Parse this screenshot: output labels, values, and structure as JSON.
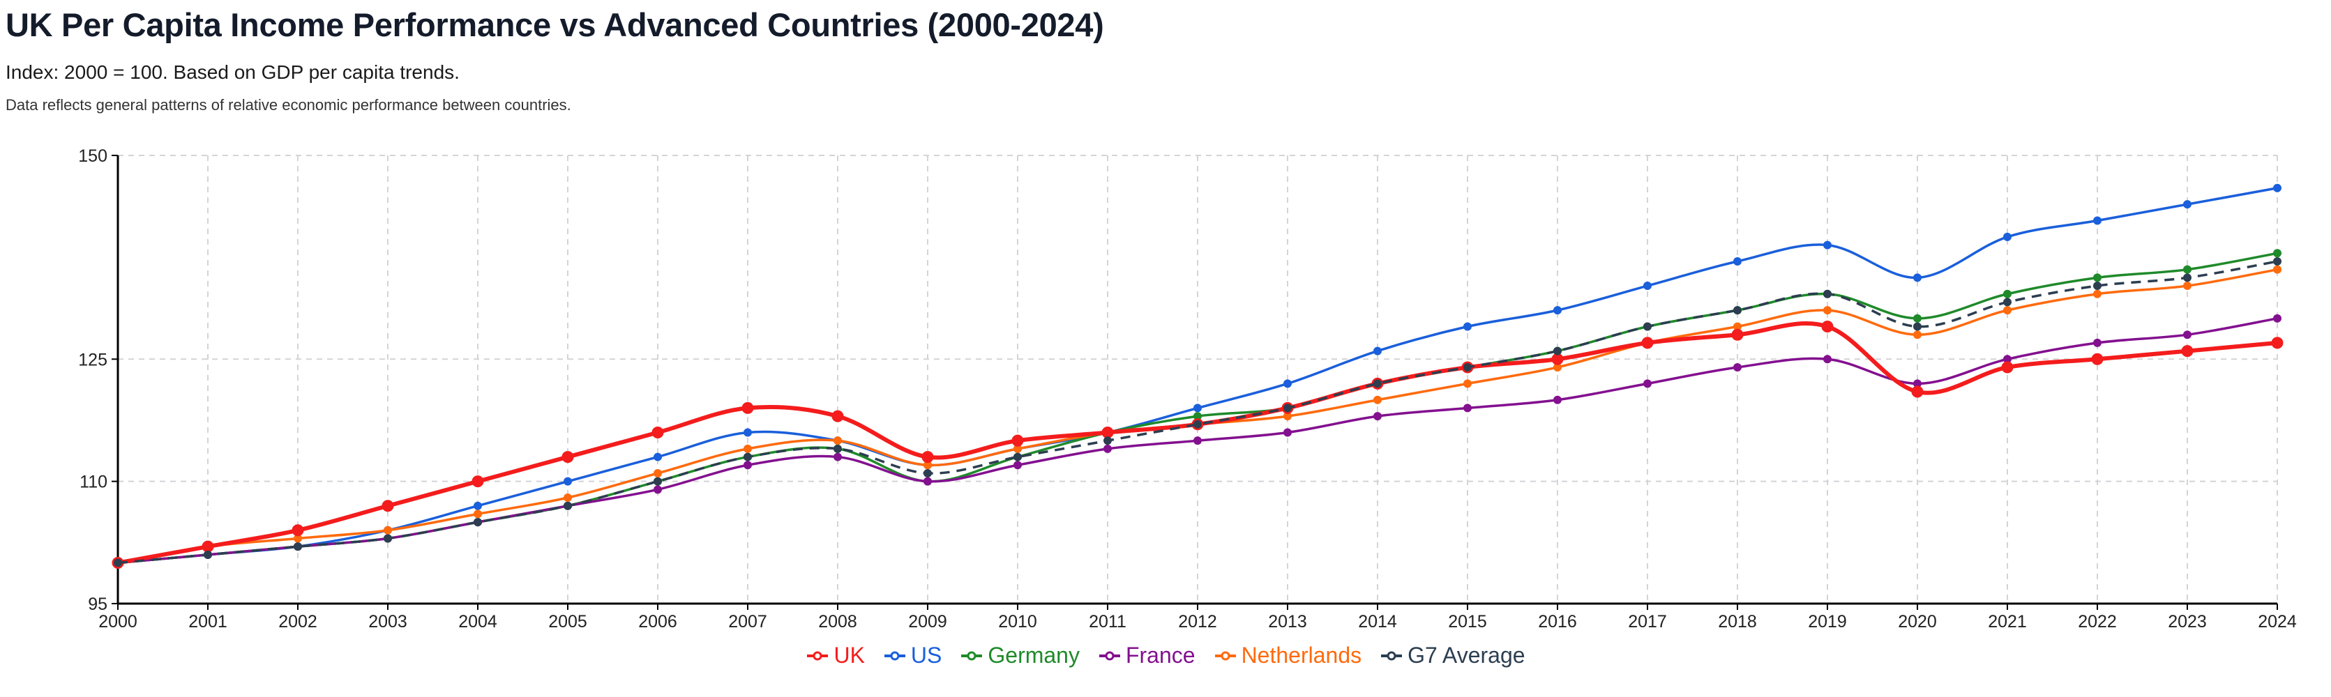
{
  "header": {
    "title": "UK Per Capita Income Performance vs Advanced Countries (2000-2024)",
    "subtitle": "Index: 2000 = 100. Based on GDP per capita trends.",
    "note": "Data reflects general patterns of relative economic performance between countries."
  },
  "chart_data": {
    "type": "line",
    "title": "UK Per Capita Income Performance vs Advanced Countries (2000-2024)",
    "xlabel": "",
    "ylabel": "",
    "ylim": [
      95,
      150
    ],
    "yticks": [
      95,
      110,
      125,
      150
    ],
    "grid": true,
    "legend_position": "bottom-center",
    "x": [
      2000,
      2001,
      2002,
      2003,
      2004,
      2005,
      2006,
      2007,
      2008,
      2009,
      2010,
      2011,
      2012,
      2013,
      2014,
      2015,
      2016,
      2017,
      2018,
      2019,
      2020,
      2021,
      2022,
      2023,
      2024
    ],
    "series": [
      {
        "name": "UK",
        "color": "#f41c1c",
        "emphasis": true,
        "dashed": false,
        "values": [
          100,
          102,
          104,
          107,
          110,
          113,
          116,
          119,
          118,
          113,
          115,
          116,
          117,
          119,
          122,
          124,
          125,
          127,
          128,
          129,
          121,
          124,
          125,
          126,
          127
        ]
      },
      {
        "name": "US",
        "color": "#1a5fdb",
        "emphasis": false,
        "dashed": false,
        "values": [
          100,
          101,
          102,
          104,
          107,
          110,
          113,
          116,
          115,
          112,
          114,
          116,
          119,
          122,
          126,
          129,
          131,
          134,
          137,
          139,
          135,
          140,
          142,
          144,
          146
        ]
      },
      {
        "name": "Germany",
        "color": "#1f8a2a",
        "emphasis": false,
        "dashed": false,
        "values": [
          100,
          101,
          102,
          103,
          105,
          107,
          110,
          113,
          114,
          110,
          113,
          116,
          118,
          119,
          122,
          124,
          126,
          129,
          131,
          133,
          130,
          133,
          135,
          136,
          138
        ]
      },
      {
        "name": "France",
        "color": "#83108f",
        "emphasis": false,
        "dashed": false,
        "values": [
          100,
          101,
          102,
          103,
          105,
          107,
          109,
          112,
          113,
          110,
          112,
          114,
          115,
          116,
          118,
          119,
          120,
          122,
          124,
          125,
          122,
          125,
          127,
          128,
          130
        ]
      },
      {
        "name": "Netherlands",
        "color": "#ff6a0d",
        "emphasis": false,
        "dashed": false,
        "values": [
          100,
          102,
          103,
          104,
          106,
          108,
          111,
          114,
          115,
          112,
          114,
          116,
          117,
          118,
          120,
          122,
          124,
          127,
          129,
          131,
          128,
          131,
          133,
          134,
          136
        ]
      },
      {
        "name": "G7 Average",
        "color": "#2c3e50",
        "emphasis": false,
        "dashed": true,
        "values": [
          100,
          101,
          102,
          103,
          105,
          107,
          110,
          113,
          114,
          111,
          113,
          115,
          117,
          119,
          122,
          124,
          126,
          129,
          131,
          133,
          129,
          132,
          134,
          135,
          137
        ]
      }
    ]
  }
}
